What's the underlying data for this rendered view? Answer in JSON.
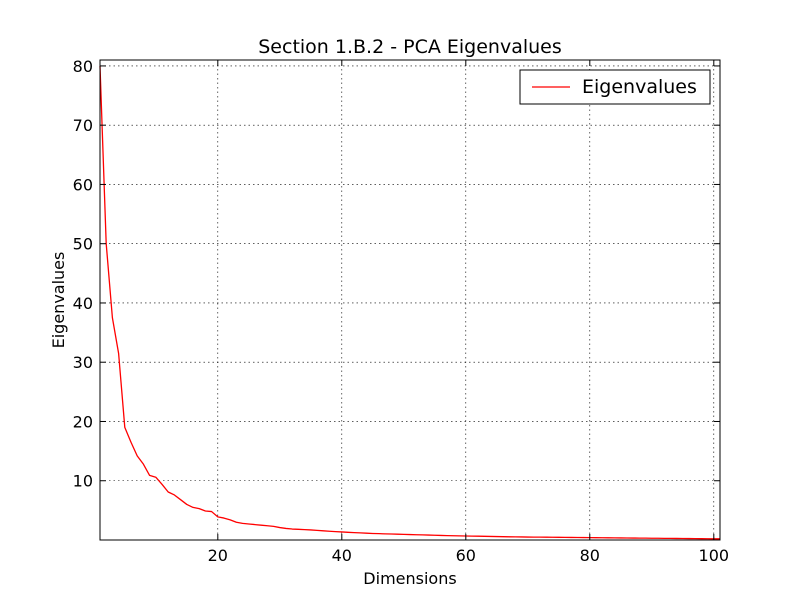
{
  "chart_data": {
    "type": "line",
    "title": "Section 1.B.2 - PCA Eigenvalues",
    "xlabel": "Dimensions",
    "ylabel": "Eigenvalues",
    "xlim": [
      1,
      101
    ],
    "ylim": [
      0,
      81
    ],
    "xticks": [
      20,
      40,
      60,
      80,
      100
    ],
    "yticks": [
      10,
      20,
      30,
      40,
      50,
      60,
      70,
      80
    ],
    "grid": true,
    "legend": {
      "placement": "top-right"
    },
    "series": [
      {
        "name": "Eigenvalues",
        "color": "#ff0000",
        "x": [
          1,
          2,
          3,
          4,
          5,
          6,
          7,
          8,
          9,
          10,
          11,
          12,
          13,
          14,
          15,
          16,
          17,
          18,
          19,
          20,
          21,
          22,
          23,
          24,
          25,
          26,
          27,
          28,
          29,
          30,
          31,
          32,
          33,
          34,
          35,
          36,
          37,
          38,
          39,
          40,
          41,
          42,
          43,
          44,
          45,
          46,
          47,
          48,
          49,
          50,
          51,
          52,
          53,
          54,
          55,
          56,
          57,
          58,
          59,
          60,
          61,
          62,
          63,
          64,
          65,
          66,
          67,
          68,
          69,
          70,
          71,
          72,
          73,
          74,
          75,
          76,
          77,
          78,
          79,
          80,
          81,
          82,
          83,
          84,
          85,
          86,
          87,
          88,
          89,
          90,
          91,
          92,
          93,
          94,
          95,
          96,
          97,
          98,
          99,
          100,
          101
        ],
        "values": [
          80.0,
          50.0,
          37.5,
          31.5,
          19.0,
          16.5,
          14.2,
          12.8,
          10.9,
          10.6,
          9.4,
          8.1,
          7.6,
          6.8,
          6.0,
          5.5,
          5.3,
          4.9,
          4.8,
          3.9,
          3.7,
          3.4,
          3.0,
          2.8,
          2.7,
          2.6,
          2.5,
          2.4,
          2.3,
          2.1,
          1.95,
          1.85,
          1.8,
          1.75,
          1.7,
          1.62,
          1.55,
          1.48,
          1.42,
          1.36,
          1.3,
          1.25,
          1.2,
          1.15,
          1.1,
          1.07,
          1.04,
          1.01,
          0.98,
          0.95,
          0.92,
          0.89,
          0.86,
          0.83,
          0.8,
          0.77,
          0.74,
          0.72,
          0.7,
          0.68,
          0.66,
          0.64,
          0.62,
          0.6,
          0.58,
          0.56,
          0.54,
          0.53,
          0.52,
          0.5,
          0.49,
          0.48,
          0.47,
          0.46,
          0.45,
          0.44,
          0.43,
          0.42,
          0.41,
          0.4,
          0.39,
          0.38,
          0.37,
          0.36,
          0.35,
          0.34,
          0.33,
          0.32,
          0.31,
          0.3,
          0.29,
          0.28,
          0.27,
          0.26,
          0.25,
          0.24,
          0.23,
          0.22,
          0.21,
          0.2,
          0.2
        ]
      }
    ]
  }
}
